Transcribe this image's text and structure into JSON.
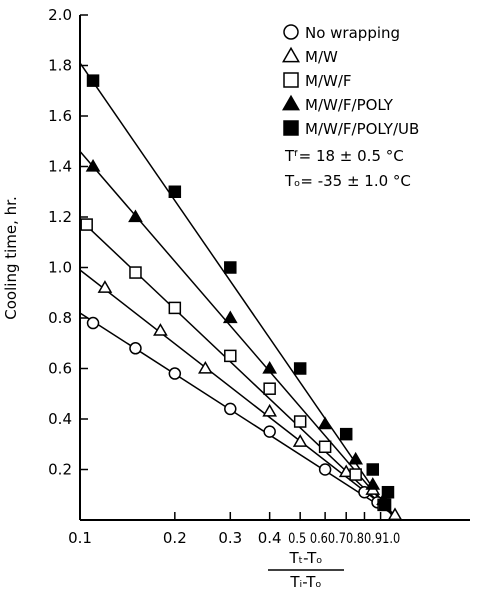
{
  "chart_data": {
    "type": "scatter",
    "x_scale": "log",
    "xlim": [
      0.1,
      1.0
    ],
    "ylim": [
      0.0,
      2.0
    ],
    "grid": false,
    "legend_position": "top-right",
    "ylabel": "Cooling time, hr.",
    "xlabel": {
      "numerator": "Tₜ-Tₒ",
      "denominator": "Tᵢ-Tₒ"
    },
    "y_ticks": [
      {
        "value": 0.2,
        "label": "0.2"
      },
      {
        "value": 0.4,
        "label": "0.4"
      },
      {
        "value": 0.6,
        "label": "0.6"
      },
      {
        "value": 0.8,
        "label": "0.8"
      },
      {
        "value": 1.0,
        "label": "1.0"
      },
      {
        "value": 1.2,
        "label": "1.2"
      },
      {
        "value": 1.4,
        "label": "1.4"
      },
      {
        "value": 1.6,
        "label": "1.6"
      },
      {
        "value": 1.8,
        "label": "1.8"
      },
      {
        "value": 2.0,
        "label": "2.0"
      }
    ],
    "x_ticks": [
      {
        "value": 0.1,
        "label": "0.1"
      },
      {
        "value": 0.2,
        "label": "0.2"
      },
      {
        "value": 0.3,
        "label": "0.3"
      },
      {
        "value": 0.4,
        "label": "0.4"
      },
      {
        "value": 0.5,
        "label": "0.5"
      },
      {
        "value": 0.6,
        "label": "0.6"
      },
      {
        "value": 0.7,
        "label": "0.7"
      },
      {
        "value": 0.8,
        "label": "0.8"
      },
      {
        "value": 0.9,
        "label": "0.9"
      },
      {
        "value": 1.0,
        "label": "1.0"
      }
    ],
    "x_tick_strip_label": "0.5  0.60.70.80.91.0",
    "series": [
      {
        "name": "No wrapping",
        "marker": "circle-open",
        "points": [
          [
            0.11,
            0.78
          ],
          [
            0.15,
            0.68
          ],
          [
            0.2,
            0.58
          ],
          [
            0.3,
            0.44
          ],
          [
            0.4,
            0.35
          ],
          [
            0.6,
            0.2
          ],
          [
            0.8,
            0.11
          ],
          [
            0.88,
            0.07
          ]
        ],
        "fit": [
          [
            0.1,
            0.82
          ],
          [
            1.05,
            0.0
          ]
        ]
      },
      {
        "name": "M/W",
        "marker": "triangle-open",
        "points": [
          [
            0.12,
            0.92
          ],
          [
            0.18,
            0.75
          ],
          [
            0.25,
            0.6
          ],
          [
            0.4,
            0.43
          ],
          [
            0.5,
            0.31
          ],
          [
            0.7,
            0.19
          ],
          [
            0.85,
            0.12
          ],
          [
            1.0,
            0.02
          ]
        ],
        "fit": [
          [
            0.1,
            0.99
          ],
          [
            1.05,
            0.0
          ]
        ]
      },
      {
        "name": "M/W/F",
        "marker": "square-open",
        "points": [
          [
            0.105,
            1.17
          ],
          [
            0.15,
            0.98
          ],
          [
            0.2,
            0.84
          ],
          [
            0.3,
            0.65
          ],
          [
            0.4,
            0.52
          ],
          [
            0.5,
            0.39
          ],
          [
            0.6,
            0.29
          ],
          [
            0.75,
            0.18
          ],
          [
            0.92,
            0.06
          ]
        ],
        "fit": [
          [
            0.1,
            1.19
          ],
          [
            1.02,
            0.0
          ]
        ]
      },
      {
        "name": "M/W/F/POLY",
        "marker": "triangle-filled",
        "points": [
          [
            0.11,
            1.4
          ],
          [
            0.15,
            1.2
          ],
          [
            0.3,
            0.8
          ],
          [
            0.4,
            0.6
          ],
          [
            0.6,
            0.38
          ],
          [
            0.75,
            0.24
          ],
          [
            0.85,
            0.14
          ],
          [
            0.92,
            0.08
          ]
        ],
        "fit": [
          [
            0.1,
            1.46
          ],
          [
            1.02,
            0.0
          ]
        ]
      },
      {
        "name": "M/W/F/POLY/UB",
        "marker": "square-filled",
        "points": [
          [
            0.11,
            1.74
          ],
          [
            0.2,
            1.3
          ],
          [
            0.3,
            1.0
          ],
          [
            0.5,
            0.6
          ],
          [
            0.7,
            0.34
          ],
          [
            0.85,
            0.2
          ],
          [
            0.95,
            0.11
          ],
          [
            0.93,
            0.06
          ]
        ],
        "fit": [
          [
            0.1,
            1.81
          ],
          [
            1.0,
            0.0
          ]
        ]
      }
    ],
    "annotations": [
      {
        "id": "tf",
        "text": "Tᶠ= 18 ± 0.5 °C"
      },
      {
        "id": "to",
        "text": "Tₒ= -35 ± 1.0 °C"
      }
    ]
  }
}
